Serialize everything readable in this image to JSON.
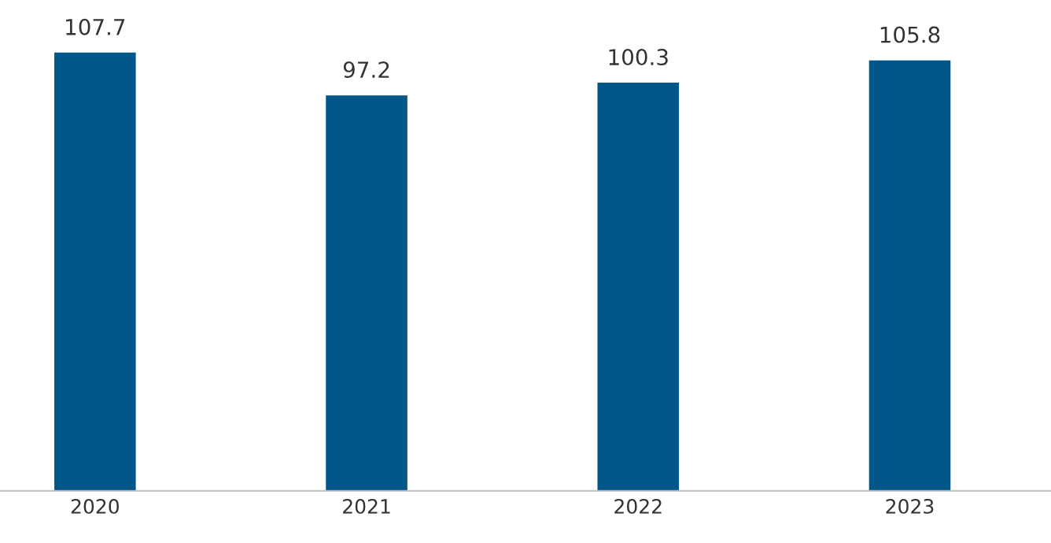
{
  "chart_data": {
    "type": "bar",
    "categories": [
      "2020",
      "2021",
      "2022",
      "2023"
    ],
    "values": [
      107.7,
      97.2,
      100.3,
      105.8
    ],
    "color": "#03568a",
    "data_labels": true,
    "tick_labels": "x"
  }
}
